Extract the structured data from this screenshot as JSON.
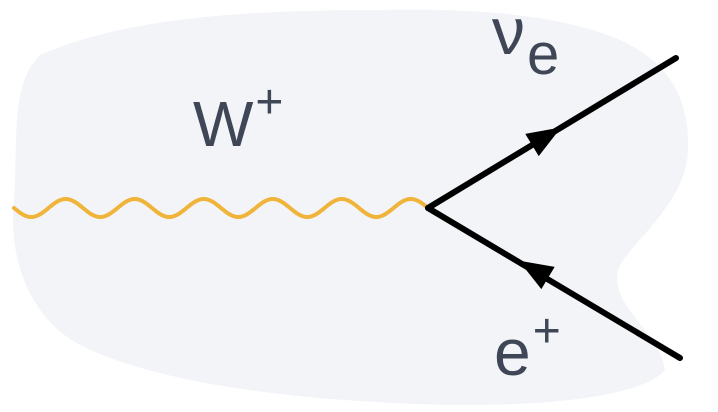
{
  "diagram": {
    "boson_label": {
      "base": "W",
      "sup": "+"
    },
    "neutrino_label": {
      "base": "ν",
      "sub": "e"
    },
    "positron_label": {
      "base": "e",
      "sup": "+"
    },
    "colors": {
      "background_blob": "#F2F4F8",
      "boson_wave": "#F0B43A",
      "fermion_line": "#000000",
      "label_text": "#3F4656"
    }
  }
}
